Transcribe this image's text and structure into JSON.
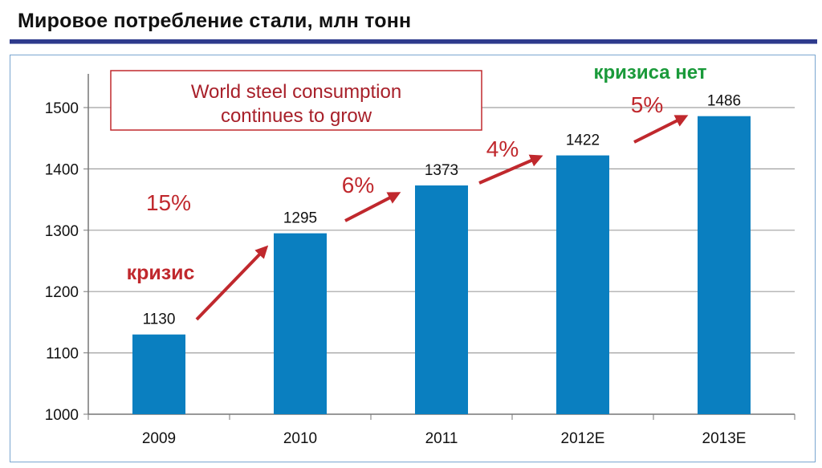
{
  "chart_data": {
    "type": "bar",
    "title": "Мировое потребление стали, млн тонн",
    "categories": [
      "2009",
      "2010",
      "2011",
      "2012E",
      "2013E"
    ],
    "values": [
      1130,
      1295,
      1373,
      1422,
      1486
    ],
    "data_labels": [
      "1130",
      "1295",
      "1373",
      "1422",
      "1486"
    ],
    "ylim": [
      1000,
      1500
    ],
    "yticks": [
      "1000",
      "1100",
      "1200",
      "1300",
      "1400",
      "1500"
    ],
    "grid": true,
    "bar_color": "#0a7fc0",
    "xlabel": "",
    "ylabel": "",
    "annotations": {
      "box_text": [
        "World steel consumption",
        "continues to grow"
      ],
      "growth": [
        "15%",
        "6%",
        "4%",
        "5%"
      ],
      "crisis": "кризис",
      "no_crisis": "кризиса нет",
      "accent_color": "#c0282d",
      "green_color": "#1a9a3a"
    }
  }
}
